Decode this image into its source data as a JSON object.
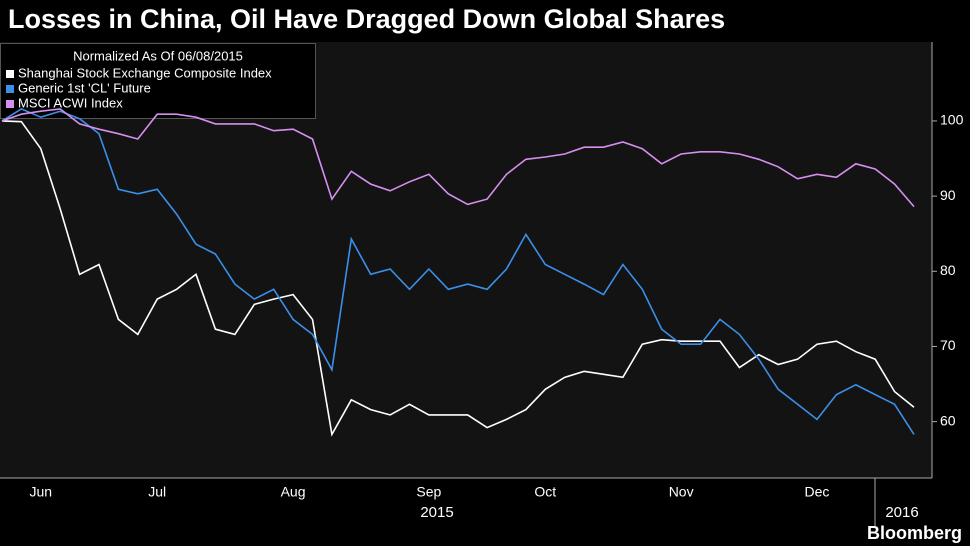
{
  "chart_data": {
    "type": "line",
    "title": "Losses in China, Oil Have Dragged Down Global Shares",
    "subtitle": "Normalized As Of 06/08/2015",
    "source": "Bloomberg",
    "years": [
      "2015",
      "2016"
    ],
    "categories": [
      null,
      null,
      "Jun",
      null,
      null,
      null,
      null,
      null,
      "Jul",
      null,
      null,
      null,
      null,
      null,
      null,
      "Aug",
      null,
      null,
      null,
      null,
      null,
      null,
      "Sep",
      null,
      null,
      null,
      null,
      null,
      "Oct",
      null,
      null,
      null,
      null,
      null,
      null,
      "Nov",
      null,
      null,
      null,
      null,
      null,
      null,
      "Dec",
      null,
      null,
      null,
      null,
      null
    ],
    "ylim": [
      52.5,
      110.5
    ],
    "yticks": [
      60,
      70,
      80,
      90,
      100
    ],
    "axis_side": "right",
    "series": [
      {
        "name": "Shanghai Stock Exchange Composite Index",
        "color": "#ffffff",
        "values": [
          100,
          99.9,
          96.3,
          88.3,
          79.6,
          80.9,
          73.6,
          71.6,
          76.3,
          77.6,
          79.6,
          72.3,
          71.6,
          75.6,
          76.3,
          76.9,
          73.6,
          58.3,
          62.9,
          61.6,
          60.9,
          62.3,
          60.9,
          60.9,
          60.9,
          59.2,
          60.3,
          61.6,
          64.3,
          65.9,
          66.7,
          66.3,
          65.9,
          70.3,
          70.9,
          70.7,
          70.7,
          70.7,
          67.2,
          68.9,
          67.6,
          68.3,
          70.3,
          70.7,
          69.3,
          68.3,
          64.0,
          61.9
        ]
      },
      {
        "name": "Generic 1st 'CL' Future",
        "color": "#3b8fe8",
        "values": [
          100,
          101.6,
          100.5,
          101.3,
          100.3,
          98.3,
          90.9,
          90.3,
          90.9,
          87.6,
          83.6,
          82.3,
          78.3,
          76.3,
          77.6,
          73.6,
          71.6,
          66.9,
          84.3,
          79.6,
          80.3,
          77.6,
          80.3,
          77.6,
          78.3,
          77.6,
          80.3,
          84.9,
          80.9,
          79.6,
          78.3,
          76.9,
          80.9,
          77.6,
          72.3,
          70.3,
          70.3,
          73.6,
          71.6,
          68.3,
          64.3,
          62.3,
          60.3,
          63.6,
          64.9,
          63.6,
          62.3,
          58.3
        ]
      },
      {
        "name": "MSCI ACWI Index",
        "color": "#d68ff0",
        "values": [
          100,
          100.9,
          101.3,
          101.6,
          99.6,
          98.9,
          98.3,
          97.6,
          100.9,
          100.9,
          100.5,
          99.6,
          99.6,
          99.6,
          98.7,
          98.9,
          97.6,
          89.6,
          93.3,
          91.6,
          90.7,
          91.9,
          92.9,
          90.3,
          88.9,
          89.6,
          92.9,
          94.9,
          95.2,
          95.6,
          96.5,
          96.5,
          97.2,
          96.3,
          94.3,
          95.6,
          95.9,
          95.9,
          95.6,
          94.9,
          93.9,
          92.3,
          92.9,
          92.5,
          94.3,
          93.6,
          91.6,
          88.6
        ]
      }
    ]
  }
}
